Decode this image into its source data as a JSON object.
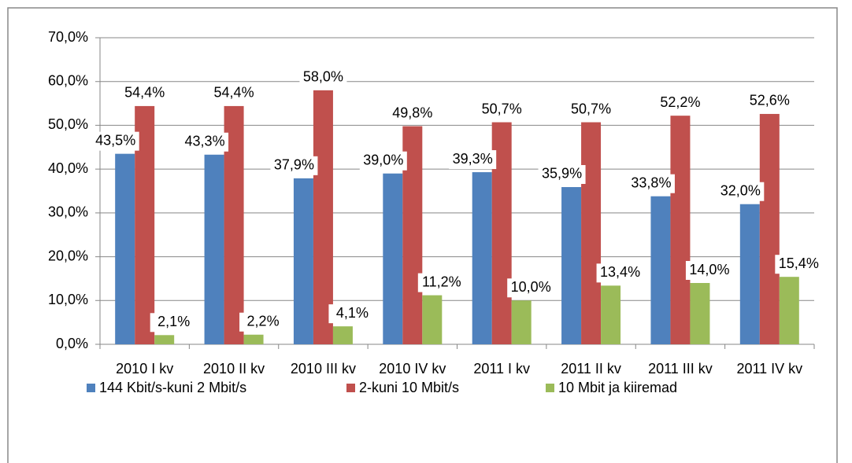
{
  "chart_data": {
    "type": "bar",
    "categories": [
      "2010 I kv",
      "2010 II kv",
      "2010 III kv",
      "2010 IV kv",
      "2011 I kv",
      "2011 II kv",
      "2011 III kv",
      "2011 IV kv"
    ],
    "series": [
      {
        "name": "144 Kbit/s-kuni 2 Mbit/s",
        "color": "#4f81bd",
        "values": [
          43.5,
          43.3,
          37.9,
          39.0,
          39.3,
          35.9,
          33.8,
          32.0
        ],
        "value_labels": [
          "43,5%",
          "43,3%",
          "37,9%",
          "39,0%",
          "39,3%",
          "35,9%",
          "33,8%",
          "32,0%"
        ]
      },
      {
        "name": "2-kuni 10 Mbit/s",
        "color": "#c0504d",
        "values": [
          54.4,
          54.4,
          58.0,
          49.8,
          50.7,
          50.7,
          52.2,
          52.6
        ],
        "value_labels": [
          "54,4%",
          "54,4%",
          "58,0%",
          "49,8%",
          "50,7%",
          "50,7%",
          "52,2%",
          "52,6%"
        ]
      },
      {
        "name": "10 Mbit ja kiiremad",
        "color": "#9bbb59",
        "values": [
          2.1,
          2.2,
          4.1,
          11.2,
          10.0,
          13.4,
          14.0,
          15.4
        ],
        "value_labels": [
          "2,1%",
          "2,2%",
          "4,1%",
          "11,2%",
          "10,0%",
          "13,4%",
          "14,0%",
          "15,4%"
        ]
      }
    ],
    "ylim": [
      0,
      70
    ],
    "yticks": [
      {
        "value": 0,
        "label": "0,0%"
      },
      {
        "value": 10,
        "label": "10,0%"
      },
      {
        "value": 20,
        "label": "20,0%"
      },
      {
        "value": 30,
        "label": "30,0%"
      },
      {
        "value": 40,
        "label": "40,0%"
      },
      {
        "value": 50,
        "label": "50,0%"
      },
      {
        "value": 60,
        "label": "60,0%"
      },
      {
        "value": 70,
        "label": "70,0%"
      }
    ],
    "grid": true,
    "legend": "bottom"
  }
}
